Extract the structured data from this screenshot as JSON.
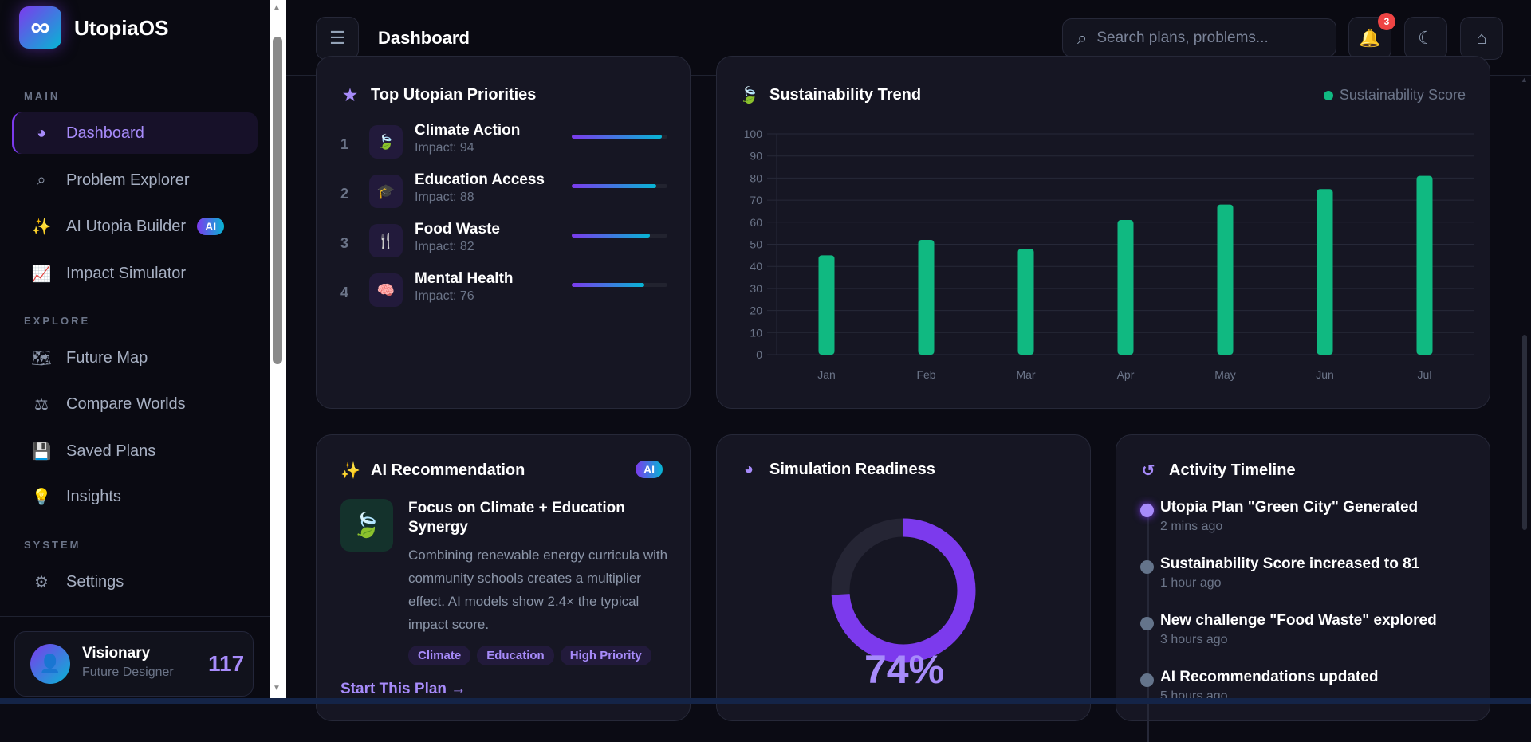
{
  "app": {
    "name": "UtopiaOS",
    "logo_icon": "infinity-icon"
  },
  "sidebar": {
    "sections": [
      {
        "label": "MAIN",
        "items": [
          {
            "label": "Dashboard",
            "icon": "gauge-icon",
            "active": true
          },
          {
            "label": "Problem Explorer",
            "icon": "search-icon"
          },
          {
            "label": "AI Utopia Builder",
            "icon": "magic-wand-icon",
            "badge": "AI"
          },
          {
            "label": "Impact Simulator",
            "icon": "chart-line-icon"
          }
        ]
      },
      {
        "label": "EXPLORE",
        "items": [
          {
            "label": "Future Map",
            "icon": "map-icon"
          },
          {
            "label": "Compare Worlds",
            "icon": "scale-icon"
          },
          {
            "label": "Saved Plans",
            "icon": "save-icon"
          },
          {
            "label": "Insights",
            "icon": "lightbulb-icon"
          }
        ]
      },
      {
        "label": "SYSTEM",
        "items": [
          {
            "label": "Settings",
            "icon": "gear-icon"
          }
        ]
      }
    ],
    "user": {
      "name": "Visionary",
      "role": "Future Designer",
      "score": "117"
    }
  },
  "header": {
    "title": "Dashboard",
    "search_placeholder": "Search plans, problems...",
    "notification_count": "3"
  },
  "priorities": {
    "title": "Top Utopian Priorities",
    "items": [
      {
        "rank": "1",
        "name": "Climate Action",
        "impact_label": "Impact: 94",
        "impact": 94,
        "icon": "leaf-icon"
      },
      {
        "rank": "2",
        "name": "Education Access",
        "impact_label": "Impact: 88",
        "impact": 88,
        "icon": "graduation-cap-icon"
      },
      {
        "rank": "3",
        "name": "Food Waste",
        "impact_label": "Impact: 82",
        "impact": 82,
        "icon": "utensils-icon"
      },
      {
        "rank": "4",
        "name": "Mental Health",
        "impact_label": "Impact: 76",
        "impact": 76,
        "icon": "brain-icon"
      }
    ]
  },
  "chart_data": {
    "type": "bar",
    "title": "Sustainability Trend",
    "categories": [
      "Jan",
      "Feb",
      "Mar",
      "Apr",
      "May",
      "Jun",
      "Jul"
    ],
    "series": [
      {
        "name": "Sustainability Score",
        "values": [
          45,
          52,
          48,
          61,
          68,
          75,
          81
        ],
        "color": "#10b981"
      }
    ],
    "ylim": [
      0,
      100
    ],
    "yticks": [
      0,
      10,
      20,
      30,
      40,
      50,
      60,
      70,
      80,
      90,
      100
    ],
    "grid": true,
    "legend": "top-right"
  },
  "recommendation": {
    "title": "AI Recommendation",
    "badge": "AI",
    "headline": "Focus on Climate + Education Synergy",
    "body": "Combining renewable energy curricula with community schools creates a multiplier effect. AI models show 2.4× the typical impact score.",
    "tags": [
      "Climate",
      "Education",
      "High Priority"
    ],
    "cta": "Start This Plan →"
  },
  "readiness": {
    "title": "Simulation Readiness",
    "value": 74,
    "label": "74%"
  },
  "timeline": {
    "title": "Activity Timeline",
    "items": [
      {
        "text": "Utopia Plan \"Green City\" Generated",
        "time": "2 mins ago"
      },
      {
        "text": "Sustainability Score increased to 81",
        "time": "1 hour ago"
      },
      {
        "text": "New challenge \"Food Waste\" explored",
        "time": "3 hours ago"
      },
      {
        "text": "AI Recommendations updated",
        "time": "5 hours ago"
      }
    ]
  },
  "colors": {
    "accent": "#7c3aed",
    "accent_light": "#a78bfa",
    "green": "#10b981",
    "cyan": "#06b6d4",
    "badge_red": "#ef4444"
  }
}
